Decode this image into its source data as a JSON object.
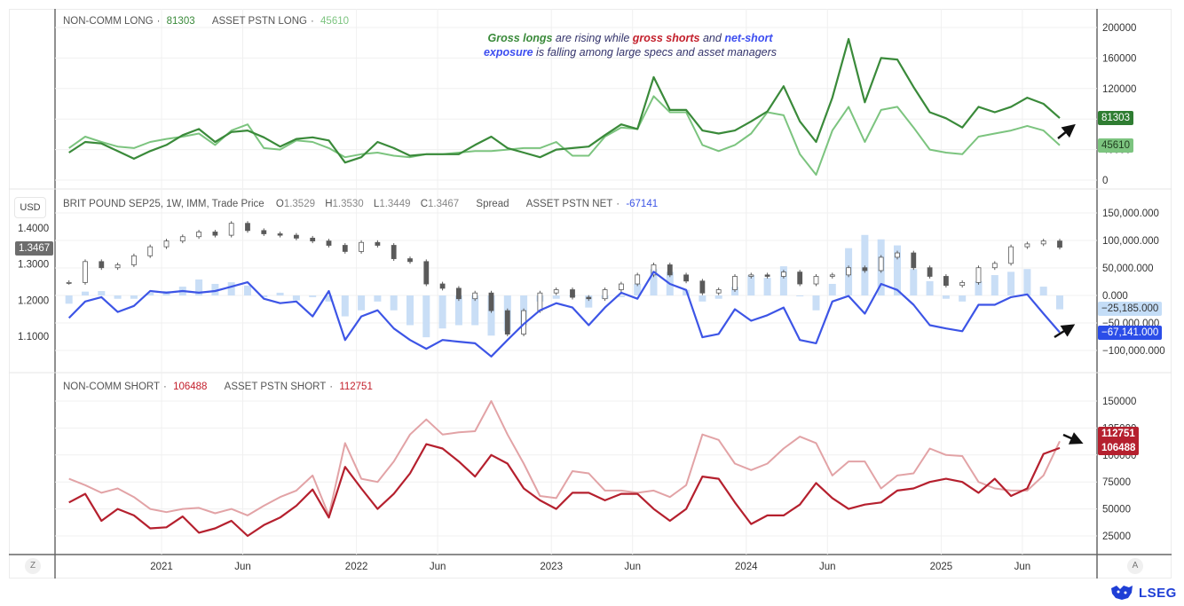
{
  "colors": {
    "nc_long": "#3a8a3a",
    "asset_long": "#7cc47f",
    "net": "#3d55e6",
    "spread": "#c9def6",
    "nc_short": "#b5202e",
    "asset_short": "#e2a3a6",
    "candle": "#5a5a5a",
    "price_box": "#6d6d6d"
  },
  "top_legend": {
    "nc_long_label": "NON-COMM LONG",
    "nc_long_value": "81303",
    "asset_long_label": "ASSET PSTN LONG",
    "asset_long_value": "45610"
  },
  "annotation": {
    "p1": "Gross longs",
    "p2": " are rising while ",
    "p3": "gross shorts",
    "p4": " and ",
    "p5": "net-short",
    "p6": "exposure",
    "p7": " is falling among large specs and asset managers"
  },
  "mid_legend": {
    "unit": "USD",
    "instrument": "BRIT POUND SEP25, 1W, IMM, Trade Price",
    "o_label": "O",
    "o": "1.3529",
    "h_label": "H",
    "h": "1.3530",
    "l_label": "L",
    "l": "1.3449",
    "c_label": "C",
    "c": "1.3467",
    "spread_label": "Spread",
    "net_label": "ASSET PSTN NET",
    "net_value": "-67141"
  },
  "bottom_legend": {
    "nc_short_label": "NON-COMM SHORT",
    "nc_short_value": "106488",
    "asset_short_label": "ASSET PSTN SHORT",
    "asset_short_value": "112751"
  },
  "price_labels": {
    "last_price": "1.3467",
    "spread_last": "−25,185.000",
    "net_last": "−67,141.000",
    "nc_long_last": "81303",
    "asset_long_last": "45610",
    "asset_short_last": "112751",
    "nc_short_last": "106488"
  },
  "buttons": {
    "zoom": "Z",
    "auto": "A"
  },
  "logo": {
    "text": "LSEG"
  },
  "chart_data": [
    {
      "type": "line",
      "panel": "top",
      "ylim": [
        0,
        210000
      ],
      "yticks": [
        "0",
        "40000",
        "80000",
        "120000",
        "160000",
        "200000"
      ],
      "x": [
        "2020-07",
        "2020-08",
        "2020-09",
        "2020-10",
        "2020-11",
        "2020-12",
        "2021-01",
        "2021-02",
        "2021-03",
        "2021-04",
        "2021-05",
        "2021-06",
        "2021-07",
        "2021-08",
        "2021-09",
        "2021-10",
        "2021-11",
        "2021-12",
        "2022-01",
        "2022-02",
        "2022-03",
        "2022-04",
        "2022-05",
        "2022-06",
        "2022-07",
        "2022-08",
        "2022-09",
        "2022-10",
        "2022-11",
        "2022-12",
        "2023-01",
        "2023-02",
        "2023-03",
        "2023-04",
        "2023-05",
        "2023-06",
        "2023-07",
        "2023-08",
        "2023-09",
        "2023-10",
        "2023-11",
        "2023-12",
        "2024-01",
        "2024-02",
        "2024-03",
        "2024-04",
        "2024-05",
        "2024-06",
        "2024-07",
        "2024-08",
        "2024-09",
        "2024-10",
        "2024-11",
        "2024-12",
        "2025-01",
        "2025-02",
        "2025-03",
        "2025-04",
        "2025-05",
        "2025-06",
        "2025-07",
        "2025-08"
      ],
      "series": [
        {
          "name": "NON-COMM LONG",
          "values": [
            36000,
            50000,
            48000,
            38000,
            28000,
            38000,
            46000,
            59000,
            67000,
            50000,
            63000,
            65000,
            56000,
            44000,
            54000,
            56000,
            52000,
            23000,
            30000,
            50000,
            42000,
            32000,
            34000,
            34000,
            34000,
            46000,
            57000,
            42000,
            36000,
            30000,
            40000,
            42000,
            44000,
            59000,
            73000,
            67000,
            135000,
            92000,
            92000,
            65000,
            61000,
            65000,
            77000,
            90000,
            123000,
            77000,
            50000,
            108000,
            185000,
            102000,
            160000,
            158000,
            122000,
            89000,
            81000,
            69000,
            96000,
            89000,
            96000,
            108000,
            100000,
            81303
          ]
        },
        {
          "name": "ASSET PSTN LONG",
          "values": [
            42000,
            57000,
            50000,
            44000,
            42000,
            50000,
            54000,
            57000,
            61000,
            46000,
            65000,
            73000,
            42000,
            40000,
            52000,
            50000,
            42000,
            30000,
            34000,
            36000,
            32000,
            30000,
            34000,
            34000,
            36000,
            38000,
            38000,
            40000,
            42000,
            42000,
            50000,
            32000,
            32000,
            57000,
            69000,
            67000,
            110000,
            89000,
            89000,
            46000,
            38000,
            46000,
            61000,
            89000,
            85000,
            34000,
            7000,
            65000,
            96000,
            50000,
            92000,
            96000,
            69000,
            40000,
            36000,
            34000,
            57000,
            61000,
            65000,
            71000,
            65000,
            45610
          ]
        }
      ]
    },
    {
      "type": "candlestick+bar+line",
      "panel": "middle",
      "left_axis": {
        "ylim": [
          1.05,
          1.45
        ],
        "yticks": [
          "1.1000",
          "1.2000",
          "1.3000",
          "1.4000"
        ]
      },
      "right_axis": {
        "ylim": [
          -120000,
          160000
        ],
        "yticks": [
          "−100,000.000",
          "−50,000.000",
          "0.000",
          "50,000.000",
          "100,000.000",
          "150,000.000"
        ]
      },
      "price_close": [
        1.249,
        1.307,
        1.29,
        1.298,
        1.323,
        1.348,
        1.364,
        1.376,
        1.389,
        1.38,
        1.413,
        1.393,
        1.384,
        1.38,
        1.372,
        1.364,
        1.352,
        1.335,
        1.36,
        1.352,
        1.315,
        1.307,
        1.245,
        1.233,
        1.204,
        1.22,
        1.171,
        1.106,
        1.171,
        1.22,
        1.229,
        1.208,
        1.204,
        1.229,
        1.245,
        1.27,
        1.298,
        1.27,
        1.253,
        1.22,
        1.229,
        1.266,
        1.27,
        1.266,
        1.278,
        1.245,
        1.266,
        1.27,
        1.29,
        1.282,
        1.319,
        1.331,
        1.29,
        1.266,
        1.241,
        1.249,
        1.29,
        1.302,
        1.348,
        1.356,
        1.364,
        1.3467
      ],
      "series": [
        {
          "name": "Spread",
          "type": "bar",
          "values": [
            -15000,
            7000,
            8000,
            -6000,
            -6000,
            5000,
            8000,
            16000,
            29000,
            21000,
            24000,
            18000,
            -3000,
            5000,
            -9000,
            -3000,
            -11000,
            -38000,
            -27000,
            -11000,
            -27000,
            -54000,
            -76000,
            -60000,
            -54000,
            -54000,
            -73000,
            -65000,
            -54000,
            -11000,
            -6000,
            0,
            -22000,
            -6000,
            -3000,
            21000,
            48000,
            43000,
            10000,
            -11000,
            -6000,
            16000,
            37000,
            32000,
            53000,
            0,
            -27000,
            21000,
            86000,
            110000,
            102000,
            91000,
            48000,
            26000,
            -6000,
            -11000,
            26000,
            37000,
            43000,
            48000,
            16000,
            -25185
          ]
        },
        {
          "name": "ASSET PSTN NET",
          "type": "line",
          "values": [
            -41000,
            -11000,
            -3000,
            -30000,
            -19000,
            8000,
            5000,
            8000,
            5000,
            8000,
            16000,
            24000,
            -6000,
            -14000,
            -11000,
            -38000,
            8000,
            -81000,
            -38000,
            -27000,
            -60000,
            -81000,
            -97000,
            -81000,
            -84000,
            -87000,
            -111000,
            -81000,
            -52000,
            -27000,
            -14000,
            -22000,
            -54000,
            -22000,
            5000,
            -6000,
            43000,
            21000,
            10000,
            -76000,
            -70000,
            -25000,
            -46000,
            -36000,
            -22000,
            -81000,
            -87000,
            -11000,
            -1000,
            -33000,
            21000,
            10000,
            -17000,
            -54000,
            -60000,
            -65000,
            -17000,
            -17000,
            -3000,
            2000,
            -33000,
            -67141
          ]
        }
      ]
    },
    {
      "type": "line",
      "panel": "bottom",
      "ylim": [
        10000,
        160000
      ],
      "yticks": [
        "25000",
        "50000",
        "75000",
        "100000",
        "125000",
        "150000"
      ],
      "series": [
        {
          "name": "NON-COMM SHORT",
          "values": [
            56000,
            64000,
            39000,
            50000,
            44000,
            32000,
            33000,
            43000,
            28000,
            32000,
            39000,
            25000,
            35000,
            42000,
            53000,
            68000,
            42000,
            89000,
            69000,
            50000,
            64000,
            83000,
            110000,
            106000,
            94000,
            80000,
            100000,
            92000,
            69000,
            58000,
            50000,
            65000,
            65000,
            58000,
            64000,
            64000,
            50000,
            39000,
            50000,
            80000,
            78000,
            56000,
            36000,
            44000,
            44000,
            54000,
            74000,
            60000,
            50000,
            54000,
            56000,
            67000,
            69000,
            75000,
            78000,
            75000,
            65000,
            78000,
            62000,
            69000,
            101000,
            106488
          ]
        },
        {
          "name": "ASSET PSTN SHORT",
          "values": [
            78000,
            72000,
            65000,
            69000,
            61000,
            50000,
            47000,
            50000,
            51000,
            46000,
            50000,
            44000,
            53000,
            61000,
            67000,
            81000,
            44000,
            111000,
            78000,
            75000,
            94000,
            119000,
            133000,
            119000,
            121000,
            122000,
            150000,
            119000,
            92000,
            62000,
            60000,
            85000,
            83000,
            67000,
            67000,
            65000,
            67000,
            61000,
            72000,
            119000,
            114000,
            92000,
            86000,
            92000,
            106000,
            117000,
            111000,
            81000,
            94000,
            94000,
            69000,
            81000,
            83000,
            106000,
            100000,
            99000,
            75000,
            69000,
            67000,
            67000,
            81000,
            112751
          ]
        }
      ]
    },
    {
      "type": "time_axis",
      "ticks": [
        {
          "date": "2021-01",
          "label": "2021"
        },
        {
          "date": "2021-06",
          "label": "Jun"
        },
        {
          "date": "2022-01",
          "label": "2022"
        },
        {
          "date": "2022-06",
          "label": "Jun"
        },
        {
          "date": "2023-01",
          "label": "2023"
        },
        {
          "date": "2023-06",
          "label": "Jun"
        },
        {
          "date": "2024-01",
          "label": "2024"
        },
        {
          "date": "2024-06",
          "label": "Jun"
        },
        {
          "date": "2025-01",
          "label": "2025"
        },
        {
          "date": "2025-06",
          "label": "Jun"
        }
      ]
    }
  ]
}
